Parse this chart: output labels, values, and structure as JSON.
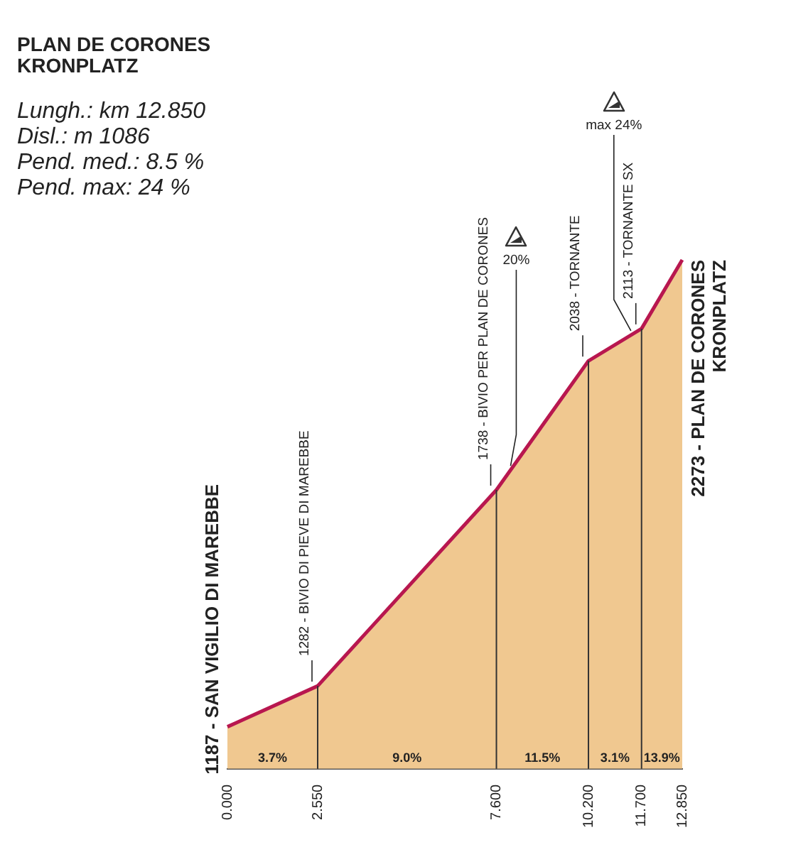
{
  "chart_data": {
    "type": "area",
    "title": "PLAN DE CORONES\nKRONPLATZ",
    "subtitle": "Lungh.: km 12.850\nDisl.: m 1086\nPend. med.: 8.5 %\nPend. max: 24 %",
    "x": [
      0,
      2.55,
      7.6,
      10.2,
      11.7,
      12.85
    ],
    "values": [
      1187,
      1282,
      1738,
      2038,
      2113,
      2273
    ],
    "value_labels": [
      "1187 - SAN VIGILIO DI MAREBBE",
      "1282 - BIVIO DI PIEVE DI MAREBBE",
      "1738 - BIVIO PER PLAN DE CORONES",
      "2038 - TORNANTE",
      "2113 - TORNANTE SX",
      "2273 - PLAN DE CORONES\nKRONPLATZ"
    ],
    "color": "#f0c890",
    "xlim": [
      0,
      12.85
    ],
    "xticks": [
      {
        "value": 0,
        "label": "0.000"
      },
      {
        "value": 2.55,
        "label": "2.550"
      },
      {
        "value": 7.6,
        "label": "7.600"
      },
      {
        "value": 10.2,
        "label": "10.200"
      },
      {
        "value": 11.7,
        "label": "11.700"
      },
      {
        "value": 12.85,
        "label": "12.850"
      }
    ],
    "legend": false,
    "tick_labels": "x",
    "ref_lines": [
      {
        "axis": "x",
        "value": 2.55,
        "color": "#333333"
      },
      {
        "axis": "x",
        "value": 7.6,
        "color": "#333333"
      },
      {
        "axis": "x",
        "value": 10.2,
        "color": "#333333"
      },
      {
        "axis": "x",
        "value": 11.7,
        "color": "#333333"
      }
    ],
    "annotations": [
      "3.7%",
      "9.0%",
      "11.5%",
      "3.1%",
      "13.9%",
      {
        "text": "20%",
        "x": 8.0,
        "y": 1784
      },
      {
        "text": "max 24%",
        "x": 11.4,
        "y": 2098
      }
    ]
  }
}
